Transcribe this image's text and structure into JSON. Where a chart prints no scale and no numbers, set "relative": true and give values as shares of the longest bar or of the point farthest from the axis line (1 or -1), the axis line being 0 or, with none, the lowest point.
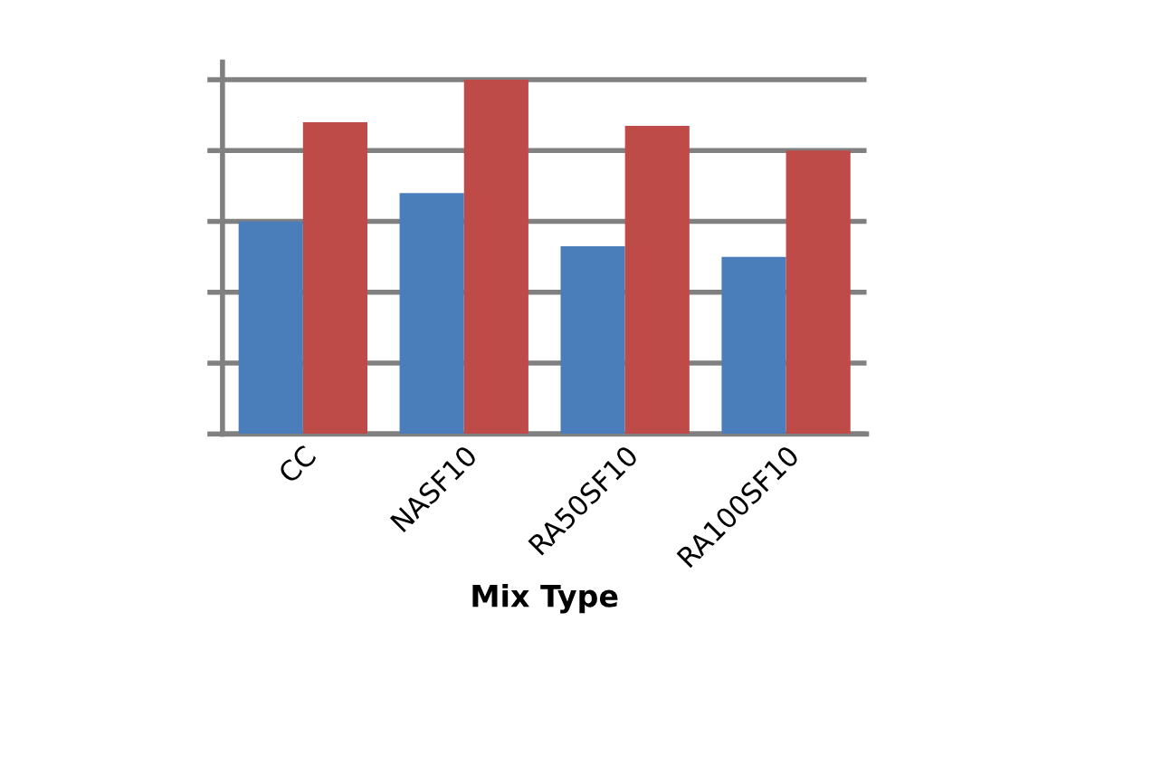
{
  "chart_data": {
    "type": "bar",
    "xlabel": "Mix Type",
    "relative": true,
    "grid": "y",
    "categories": [
      "CC",
      "NASF10",
      "RA50SF10",
      "RA100SF10"
    ],
    "series": [
      {
        "color": "#4a7ebb",
        "values": [
          0.6,
          0.68,
          0.53,
          0.5
        ]
      },
      {
        "color": "#be4b48",
        "values": [
          0.88,
          1.0,
          0.87,
          0.8
        ]
      }
    ]
  }
}
